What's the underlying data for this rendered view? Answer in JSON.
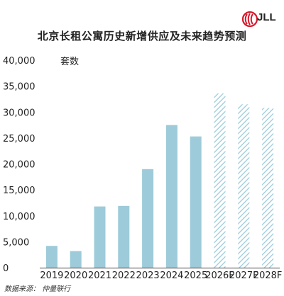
{
  "header": {
    "title": "北京长租公寓历史新增供应及未来趋势预测",
    "brand": "JLL",
    "unit": "套数"
  },
  "footer": {
    "source": "数据来源： 仲量联行"
  },
  "colors": {
    "actual_bar": "#9dcbd9",
    "forecast_bar": "#9dcbd9",
    "brand_red": "#d7182a"
  },
  "chart_data": {
    "type": "bar",
    "title": "北京长租公寓历史新增供应及未来趋势预测",
    "xlabel": "",
    "ylabel": "套数",
    "ylim": [
      0,
      40000
    ],
    "yticks": [
      0,
      5000,
      10000,
      15000,
      20000,
      25000,
      30000,
      35000,
      40000
    ],
    "ytick_labels": [
      "0",
      "5,000",
      "10,000",
      "15,000",
      "20,000",
      "25,000",
      "30,000",
      "35,000",
      "40,000"
    ],
    "grid": false,
    "categories": [
      "2019",
      "2020",
      "2021",
      "2022",
      "2023",
      "2024",
      "2025",
      "2026F",
      "2027F",
      "2028F"
    ],
    "values": [
      4200,
      3200,
      11800,
      11900,
      19000,
      27500,
      25300,
      33600,
      31500,
      30800
    ],
    "forecast": [
      false,
      false,
      false,
      false,
      false,
      false,
      false,
      true,
      true,
      true
    ]
  }
}
